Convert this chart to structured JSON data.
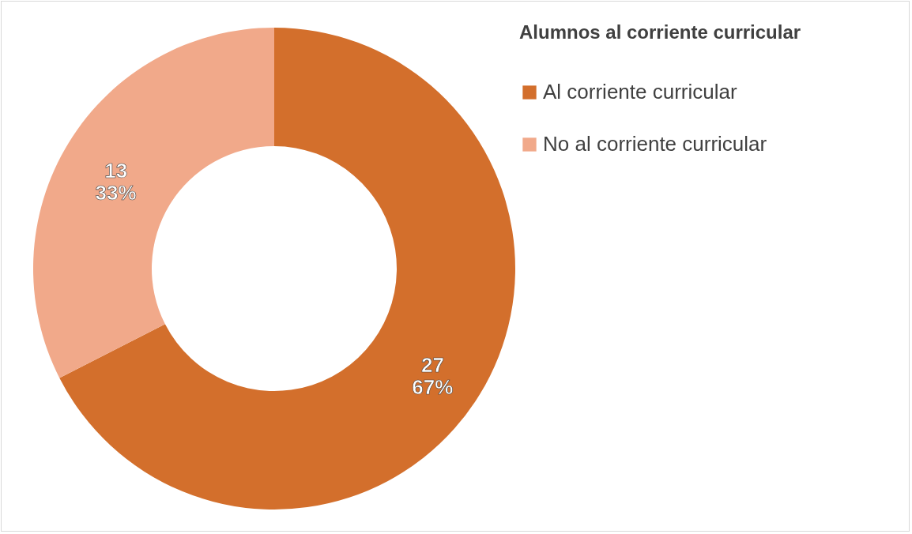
{
  "chart_data": {
    "type": "donut",
    "legend_title": "Alumnos al corriente curricular",
    "legend": "right",
    "categories": [
      "Al corriente curricular",
      "No al corriente curricular"
    ],
    "values": [
      27,
      13
    ],
    "colors": [
      "#d36f2c",
      "#f1a98a"
    ],
    "value_labels": [
      "27\n67%",
      "13\n33%"
    ]
  }
}
